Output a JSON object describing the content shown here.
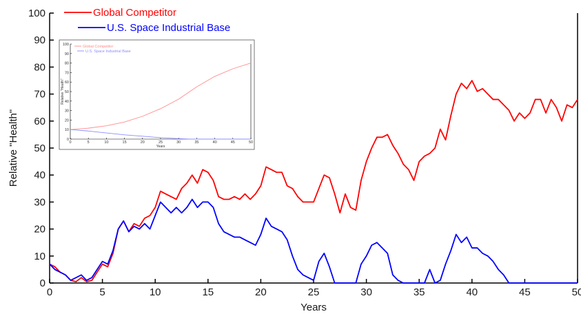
{
  "chart_data": [
    {
      "type": "line",
      "title": "",
      "xlabel": "Years",
      "ylabel": "Relative \"Health\"",
      "xlim": [
        0,
        50
      ],
      "ylim": [
        0,
        100
      ],
      "xticks": [
        0,
        5,
        10,
        15,
        20,
        25,
        30,
        35,
        40,
        45,
        50
      ],
      "yticks": [
        0,
        10,
        20,
        30,
        40,
        50,
        60,
        70,
        80,
        90,
        100
      ],
      "grid": false,
      "legend_position": "top-left",
      "series": [
        {
          "name": "Global Competitor",
          "color": "#ff0000",
          "points": [
            [
              0,
              7
            ],
            [
              0.5,
              6
            ],
            [
              1,
              4
            ],
            [
              1.5,
              3
            ],
            [
              2,
              1
            ],
            [
              2.5,
              0.5
            ],
            [
              3,
              2
            ],
            [
              3.5,
              0.5
            ],
            [
              4,
              1
            ],
            [
              4.5,
              4
            ],
            [
              5,
              7
            ],
            [
              5.5,
              6
            ],
            [
              6,
              11
            ],
            [
              6.5,
              20
            ],
            [
              7,
              23
            ],
            [
              7.5,
              19
            ],
            [
              8,
              22
            ],
            [
              8.5,
              21
            ],
            [
              9,
              24
            ],
            [
              9.5,
              25
            ],
            [
              10,
              28
            ],
            [
              10.5,
              34
            ],
            [
              11,
              33
            ],
            [
              11.5,
              32
            ],
            [
              12,
              31
            ],
            [
              12.5,
              35
            ],
            [
              13,
              37
            ],
            [
              13.5,
              40
            ],
            [
              14,
              37
            ],
            [
              14.5,
              42
            ],
            [
              15,
              41
            ],
            [
              15.5,
              38
            ],
            [
              16,
              32
            ],
            [
              16.5,
              31
            ],
            [
              17,
              31
            ],
            [
              17.5,
              32
            ],
            [
              18,
              31
            ],
            [
              18.5,
              33
            ],
            [
              19,
              31
            ],
            [
              19.5,
              33
            ],
            [
              20,
              36
            ],
            [
              20.5,
              43
            ],
            [
              21,
              42
            ],
            [
              21.5,
              41
            ],
            [
              22,
              41
            ],
            [
              22.5,
              36
            ],
            [
              23,
              35
            ],
            [
              23.5,
              32
            ],
            [
              24,
              30
            ],
            [
              24.5,
              30
            ],
            [
              25,
              30
            ],
            [
              25.5,
              35
            ],
            [
              26,
              40
            ],
            [
              26.5,
              39
            ],
            [
              27,
              33
            ],
            [
              27.5,
              26
            ],
            [
              28,
              33
            ],
            [
              28.5,
              28
            ],
            [
              29,
              27
            ],
            [
              29.5,
              38
            ],
            [
              30,
              45
            ],
            [
              30.5,
              50
            ],
            [
              31,
              54
            ],
            [
              31.5,
              54
            ],
            [
              32,
              55
            ],
            [
              32.5,
              51
            ],
            [
              33,
              48
            ],
            [
              33.5,
              44
            ],
            [
              34,
              42
            ],
            [
              34.5,
              38
            ],
            [
              35,
              45
            ],
            [
              35.5,
              47
            ],
            [
              36,
              48
            ],
            [
              36.5,
              50
            ],
            [
              37,
              57
            ],
            [
              37.5,
              53
            ],
            [
              38,
              62
            ],
            [
              38.5,
              70
            ],
            [
              39,
              74
            ],
            [
              39.5,
              72
            ],
            [
              40,
              75
            ],
            [
              40.5,
              71
            ],
            [
              41,
              72
            ],
            [
              41.5,
              70
            ],
            [
              42,
              68
            ],
            [
              42.5,
              68
            ],
            [
              43,
              66
            ],
            [
              43.5,
              64
            ],
            [
              44,
              60
            ],
            [
              44.5,
              63
            ],
            [
              45,
              61
            ],
            [
              45.5,
              63
            ],
            [
              46,
              68
            ],
            [
              46.5,
              68
            ],
            [
              47,
              63
            ],
            [
              47.5,
              68
            ],
            [
              48,
              65
            ],
            [
              48.5,
              60
            ],
            [
              49,
              66
            ],
            [
              49.5,
              65
            ],
            [
              50,
              68
            ]
          ]
        },
        {
          "name": "U.S. Space Industrial Base",
          "color": "#0000ff",
          "points": [
            [
              0,
              7
            ],
            [
              0.5,
              5
            ],
            [
              1,
              4
            ],
            [
              1.5,
              3
            ],
            [
              2,
              1
            ],
            [
              2.5,
              2
            ],
            [
              3,
              3
            ],
            [
              3.5,
              1
            ],
            [
              4,
              2
            ],
            [
              4.5,
              5
            ],
            [
              5,
              8
            ],
            [
              5.5,
              7
            ],
            [
              6,
              12
            ],
            [
              6.5,
              20
            ],
            [
              7,
              23
            ],
            [
              7.5,
              19
            ],
            [
              8,
              21
            ],
            [
              8.5,
              20
            ],
            [
              9,
              22
            ],
            [
              9.5,
              20
            ],
            [
              10,
              25
            ],
            [
              10.5,
              30
            ],
            [
              11,
              28
            ],
            [
              11.5,
              26
            ],
            [
              12,
              28
            ],
            [
              12.5,
              26
            ],
            [
              13,
              28
            ],
            [
              13.5,
              31
            ],
            [
              14,
              28
            ],
            [
              14.5,
              30
            ],
            [
              15,
              30
            ],
            [
              15.5,
              28
            ],
            [
              16,
              22
            ],
            [
              16.5,
              19
            ],
            [
              17,
              18
            ],
            [
              17.5,
              17
            ],
            [
              18,
              17
            ],
            [
              18.5,
              16
            ],
            [
              19,
              15
            ],
            [
              19.5,
              14
            ],
            [
              20,
              18
            ],
            [
              20.5,
              24
            ],
            [
              21,
              21
            ],
            [
              21.5,
              20
            ],
            [
              22,
              19
            ],
            [
              22.5,
              16
            ],
            [
              23,
              10
            ],
            [
              23.5,
              5
            ],
            [
              24,
              3
            ],
            [
              24.5,
              2
            ],
            [
              25,
              1
            ],
            [
              25.5,
              8
            ],
            [
              26,
              11
            ],
            [
              26.5,
              6
            ],
            [
              27,
              0
            ],
            [
              27.5,
              0
            ],
            [
              28,
              0
            ],
            [
              28.5,
              0
            ],
            [
              29,
              0
            ],
            [
              29.5,
              7
            ],
            [
              30,
              10
            ],
            [
              30.5,
              14
            ],
            [
              31,
              15
            ],
            [
              31.5,
              13
            ],
            [
              32,
              11
            ],
            [
              32.5,
              3
            ],
            [
              33,
              1
            ],
            [
              33.5,
              0
            ],
            [
              34,
              0
            ],
            [
              34.5,
              0
            ],
            [
              35,
              0
            ],
            [
              35.5,
              0
            ],
            [
              36,
              5
            ],
            [
              36.5,
              0
            ],
            [
              37,
              1
            ],
            [
              37.5,
              7
            ],
            [
              38,
              12
            ],
            [
              38.5,
              18
            ],
            [
              39,
              15
            ],
            [
              39.5,
              17
            ],
            [
              40,
              13
            ],
            [
              40.5,
              13
            ],
            [
              41,
              11
            ],
            [
              41.5,
              10
            ],
            [
              42,
              8
            ],
            [
              42.5,
              5
            ],
            [
              43,
              3
            ],
            [
              43.5,
              0
            ],
            [
              44,
              0
            ],
            [
              45,
              0
            ],
            [
              46,
              0
            ],
            [
              47,
              0
            ],
            [
              48,
              0
            ],
            [
              49,
              0
            ],
            [
              50,
              0
            ]
          ]
        }
      ]
    },
    {
      "type": "line",
      "title": "",
      "xlabel": "Years",
      "ylabel": "Relative \"Health\"",
      "xlim": [
        0,
        50
      ],
      "ylim": [
        0,
        100
      ],
      "xticks": [
        0,
        5,
        10,
        15,
        20,
        25,
        30,
        35,
        40,
        45,
        50
      ],
      "yticks": [
        0,
        10,
        20,
        30,
        40,
        50,
        60,
        70,
        80,
        90,
        100
      ],
      "grid": false,
      "legend_position": "top-left",
      "series": [
        {
          "name": "Global Competitor",
          "color": "#ff8c8c",
          "points": [
            [
              0,
              10
            ],
            [
              5,
              11.5
            ],
            [
              10,
              14
            ],
            [
              15,
              18
            ],
            [
              20,
              24
            ],
            [
              25,
              32
            ],
            [
              30,
              42
            ],
            [
              35,
              55
            ],
            [
              40,
              66
            ],
            [
              45,
              74
            ],
            [
              50,
              80
            ]
          ]
        },
        {
          "name": "U.S. Space Industrial Base",
          "color": "#8c8cff",
          "points": [
            [
              0,
              10
            ],
            [
              5,
              8.5
            ],
            [
              10,
              6.5
            ],
            [
              15,
              4.5
            ],
            [
              20,
              3
            ],
            [
              25,
              1.5
            ],
            [
              30,
              0.5
            ],
            [
              33,
              0
            ],
            [
              35,
              0
            ],
            [
              40,
              0
            ],
            [
              45,
              0
            ],
            [
              50,
              0
            ]
          ]
        }
      ]
    }
  ]
}
